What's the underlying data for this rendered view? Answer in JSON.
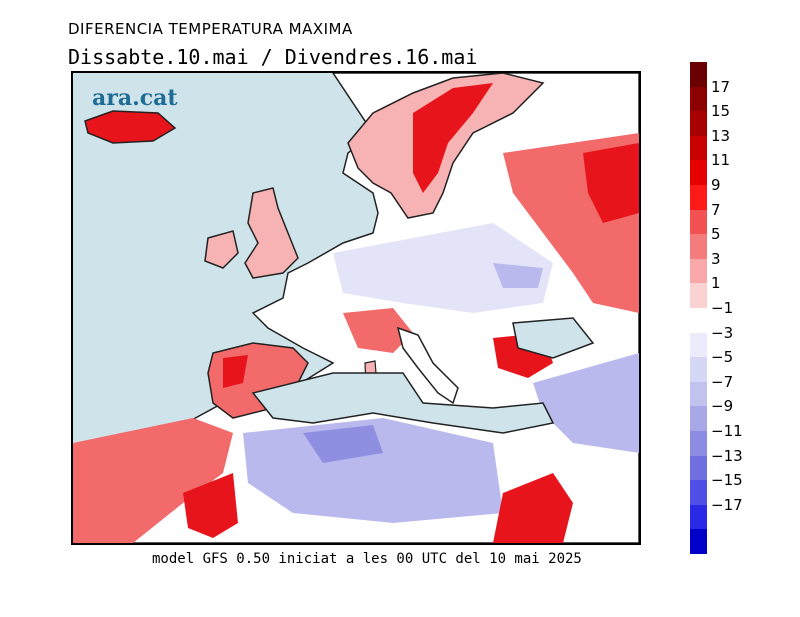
{
  "header": {
    "title": "DIFERENCIA TEMPERATURA MAXIMA",
    "subtitle": "Dissabte.10.mai / Divendres.16.mai"
  },
  "map": {
    "logo_text": "ara.cat",
    "colors": {
      "sea": "#cfe3ea",
      "coast": "#222222",
      "strong_warm": "#e8141c",
      "warm": "#f26a6a",
      "mild_warm": "#f7b3b3",
      "neutral": "#ffffff",
      "mild_cool": "#e4e4f8",
      "cool": "#b9b9ee",
      "strong_cool": "#8f8fe2"
    }
  },
  "footer": {
    "text": "model GFS 0.50 iniciat a les 00 UTC del 10 mai 2025"
  },
  "colorbar": {
    "labels": [
      "17",
      "15",
      "13",
      "11",
      "9",
      "7",
      "5",
      "3",
      "1",
      "−1",
      "−3",
      "−5",
      "−7",
      "−9",
      "−11",
      "−13",
      "−15",
      "−17"
    ],
    "colors": [
      "#6b0000",
      "#8b0000",
      "#a80000",
      "#c80000",
      "#e60000",
      "#ff1a1a",
      "#f45252",
      "#f47c7c",
      "#f8a8a8",
      "#fbd2d2",
      "#ffffff",
      "#ebebfb",
      "#d6d6f5",
      "#c2c2ef",
      "#a8a8e8",
      "#8c8ce2",
      "#6f6fe0",
      "#5050e6",
      "#2a2ae6",
      "#0000c8"
    ]
  }
}
